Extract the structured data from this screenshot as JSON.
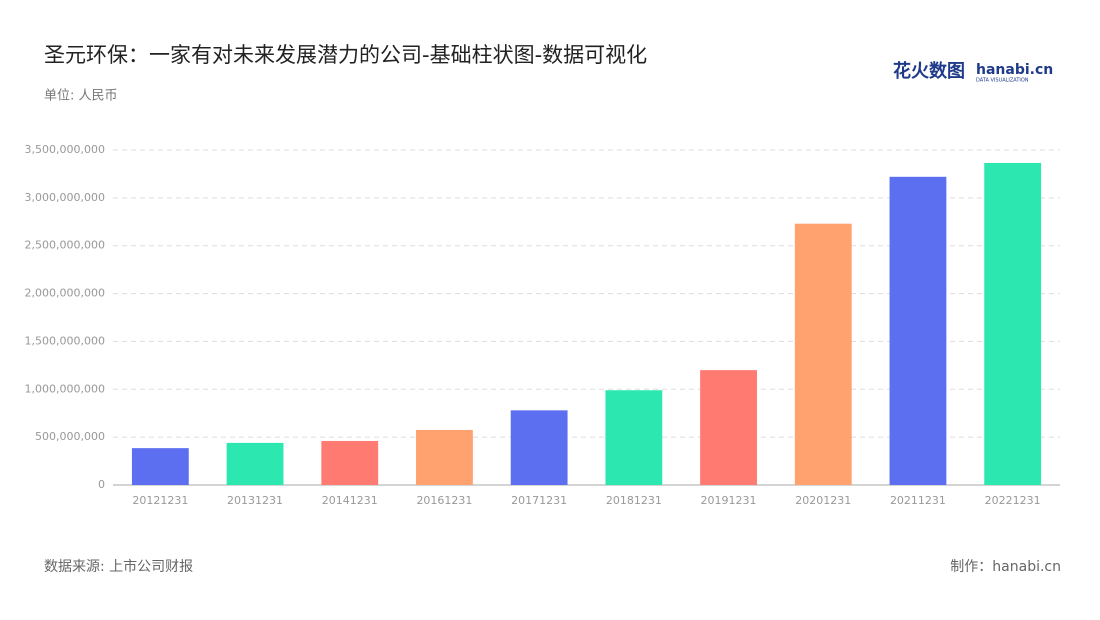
{
  "chart_data": {
    "type": "bar",
    "title": "圣元环保：一家有对未来发展潜力的公司-基础柱状图-数据可视化",
    "subtitle": "单位: 人民币",
    "source": "数据来源: 上市公司财报",
    "credit": "制作：hanabi.cn",
    "logo": {
      "cn": "花火数图",
      "en": "hanabi.cn",
      "tagline": "DATA VISUALIZATION"
    },
    "categories": [
      "20121231",
      "20131231",
      "20141231",
      "20161231",
      "20171231",
      "20181231",
      "20191231",
      "20201231",
      "20211231",
      "20221231"
    ],
    "values": [
      385000000,
      440000000,
      460000000,
      575000000,
      780000000,
      990000000,
      1200000000,
      2730000000,
      3220000000,
      3365000000
    ],
    "colors": [
      "#5b6ff0",
      "#2ce8b0",
      "#ff7a70",
      "#ffa270",
      "#5b6ff0",
      "#2ce8b0",
      "#ff7a70",
      "#ffa270",
      "#5b6ff0",
      "#2ce8b0"
    ],
    "ylim": [
      0,
      3500000000
    ],
    "yticks": [
      0,
      {
        "value": 500000000,
        "label": "500,000,000"
      },
      {
        "value": 1000000000,
        "label": "1,000,000,000"
      },
      {
        "value": 1500000000,
        "label": "1,500,000,000"
      },
      {
        "value": 2000000000,
        "label": "2,000,000,000"
      },
      {
        "value": 2500000000,
        "label": "2,500,000,000"
      },
      {
        "value": 3000000000,
        "label": "3,000,000,000"
      },
      {
        "value": 3500000000,
        "label": "3,500,000,000"
      }
    ],
    "grid": true
  }
}
